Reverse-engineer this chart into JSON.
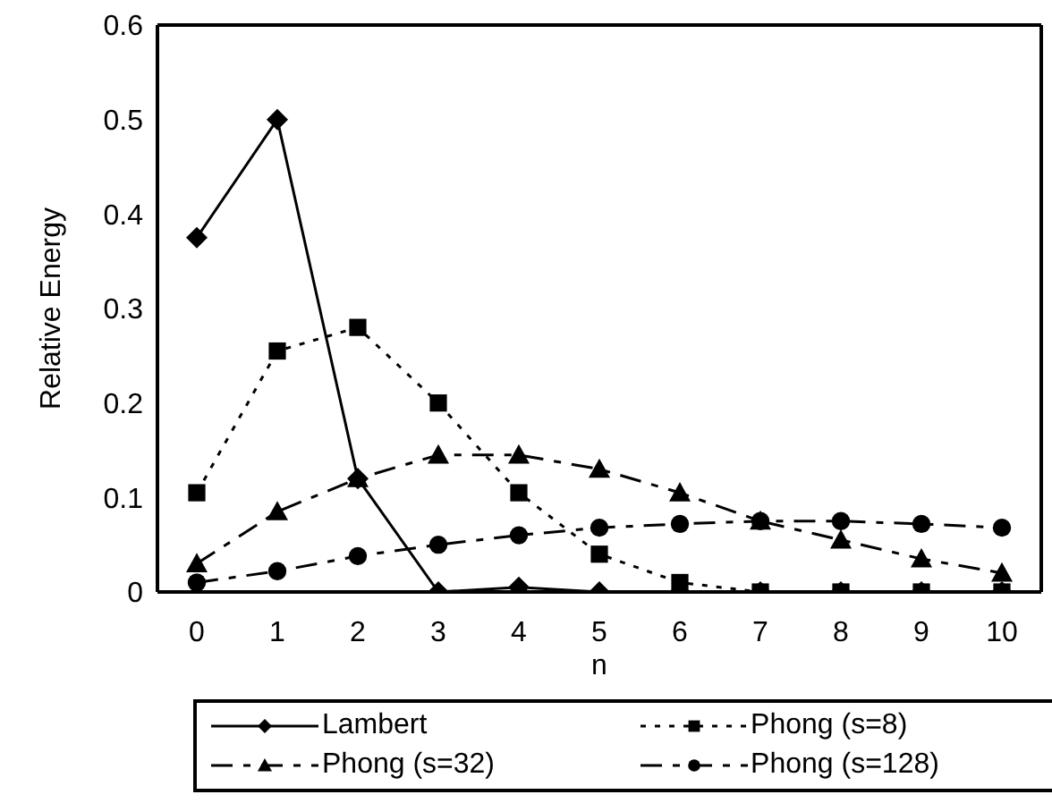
{
  "chart_data": {
    "type": "line",
    "xlabel": "n",
    "ylabel": "Relative Energy",
    "categories": [
      "0",
      "1",
      "2",
      "3",
      "4",
      "5",
      "6",
      "7",
      "8",
      "9",
      "10"
    ],
    "ylim": [
      0,
      0.6
    ],
    "yticks": [
      0,
      0.1,
      0.2,
      0.3,
      0.4,
      0.5,
      0.6
    ],
    "grid": false,
    "legend": "bottom",
    "series": [
      {
        "name": "Lambert",
        "color": "#000000",
        "marker": "diamond",
        "line_style": "solid",
        "values": [
          0.375,
          0.5,
          0.12,
          0,
          0.005,
          0,
          0,
          0,
          0,
          0,
          0
        ]
      },
      {
        "name": "Phong (s=8)",
        "color": "#000000",
        "marker": "square",
        "line_style": "dotted",
        "values": [
          0.105,
          0.255,
          0.28,
          0.2,
          0.105,
          0.04,
          0.01,
          0,
          0,
          0,
          0
        ]
      },
      {
        "name": "Phong (s=32)",
        "color": "#000000",
        "marker": "triangle",
        "line_style": "dashed",
        "values": [
          0.03,
          0.085,
          0.12,
          0.145,
          0.145,
          0.13,
          0.105,
          0.075,
          0.055,
          0.035,
          0.02
        ]
      },
      {
        "name": "Phong (s=128)",
        "color": "#000000",
        "marker": "circle",
        "line_style": "dashed",
        "values": [
          0.01,
          0.022,
          0.038,
          0.05,
          0.06,
          0.068,
          0.072,
          0.075,
          0.075,
          0.072,
          0.068
        ]
      }
    ]
  }
}
